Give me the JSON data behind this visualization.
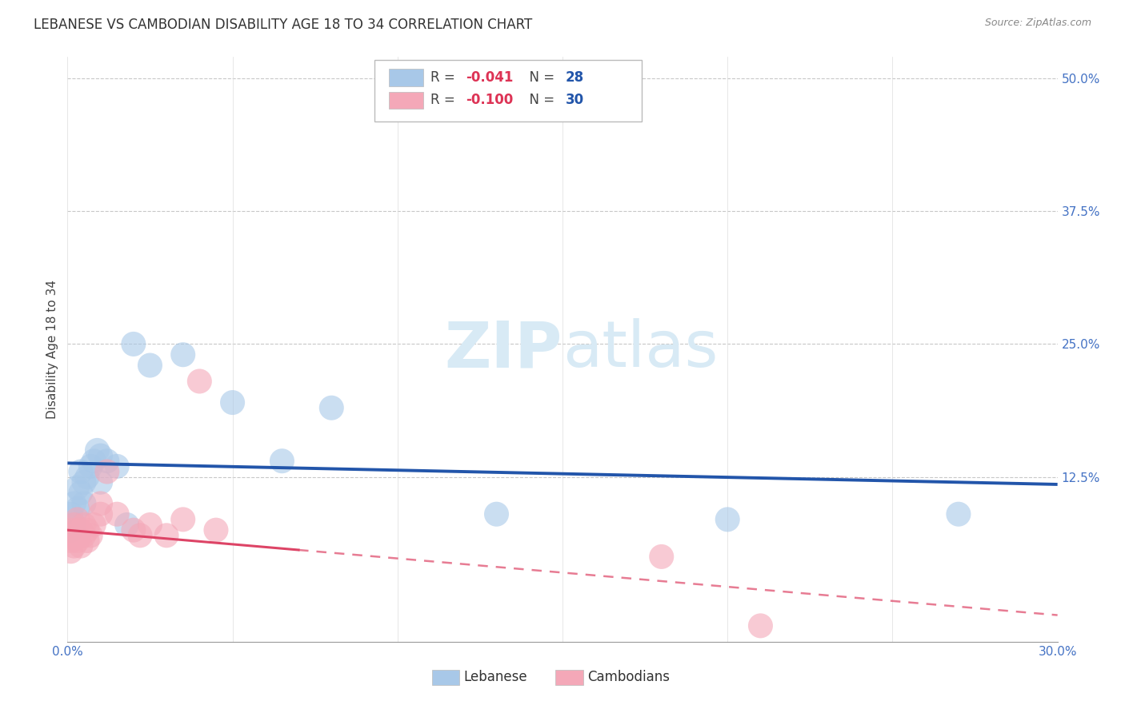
{
  "title": "LEBANESE VS CAMBODIAN DISABILITY AGE 18 TO 34 CORRELATION CHART",
  "source": "Source: ZipAtlas.com",
  "ylabel": "Disability Age 18 to 34",
  "xlim": [
    0.0,
    0.3
  ],
  "ylim": [
    -0.03,
    0.52
  ],
  "xticks": [
    0.0,
    0.05,
    0.1,
    0.15,
    0.2,
    0.25,
    0.3
  ],
  "xticklabels_show": [
    "0.0%",
    "30.0%"
  ],
  "xticklabels_pos": [
    0.0,
    0.3
  ],
  "yticks": [
    0.0,
    0.125,
    0.25,
    0.375,
    0.5
  ],
  "yticklabels": [
    "",
    "12.5%",
    "25.0%",
    "37.5%",
    "50.0%"
  ],
  "leb_color": "#A8C8E8",
  "cam_color": "#F4A8B8",
  "trend_leb_color": "#2255AA",
  "trend_cam_color": "#DD4466",
  "watermark_color": "#D8EAF5",
  "legend_box_color": "#CCCCCC",
  "leb_x": [
    0.001,
    0.001,
    0.002,
    0.002,
    0.003,
    0.003,
    0.004,
    0.004,
    0.005,
    0.005,
    0.006,
    0.007,
    0.008,
    0.009,
    0.01,
    0.01,
    0.012,
    0.015,
    0.018,
    0.02,
    0.025,
    0.035,
    0.05,
    0.065,
    0.08,
    0.13,
    0.2,
    0.27
  ],
  "leb_y": [
    0.075,
    0.09,
    0.08,
    0.1,
    0.095,
    0.115,
    0.11,
    0.13,
    0.1,
    0.12,
    0.125,
    0.135,
    0.14,
    0.15,
    0.12,
    0.145,
    0.14,
    0.135,
    0.08,
    0.25,
    0.23,
    0.24,
    0.195,
    0.14,
    0.19,
    0.09,
    0.085,
    0.09
  ],
  "cam_x": [
    0.001,
    0.001,
    0.001,
    0.002,
    0.002,
    0.002,
    0.003,
    0.003,
    0.003,
    0.004,
    0.004,
    0.005,
    0.005,
    0.006,
    0.006,
    0.007,
    0.008,
    0.01,
    0.01,
    0.012,
    0.015,
    0.02,
    0.022,
    0.025,
    0.03,
    0.035,
    0.04,
    0.045,
    0.18,
    0.21
  ],
  "cam_y": [
    0.055,
    0.065,
    0.075,
    0.06,
    0.07,
    0.08,
    0.065,
    0.075,
    0.085,
    0.06,
    0.075,
    0.07,
    0.08,
    0.065,
    0.075,
    0.07,
    0.08,
    0.09,
    0.1,
    0.13,
    0.09,
    0.075,
    0.07,
    0.08,
    0.07,
    0.085,
    0.215,
    0.075,
    0.05,
    -0.015
  ],
  "trend_leb_x0": 0.0,
  "trend_leb_x1": 0.3,
  "trend_leb_y0": 0.138,
  "trend_leb_y1": 0.118,
  "trend_cam_x0": 0.0,
  "trend_cam_x1": 0.3,
  "trend_cam_y0": 0.075,
  "trend_cam_y1": -0.005
}
